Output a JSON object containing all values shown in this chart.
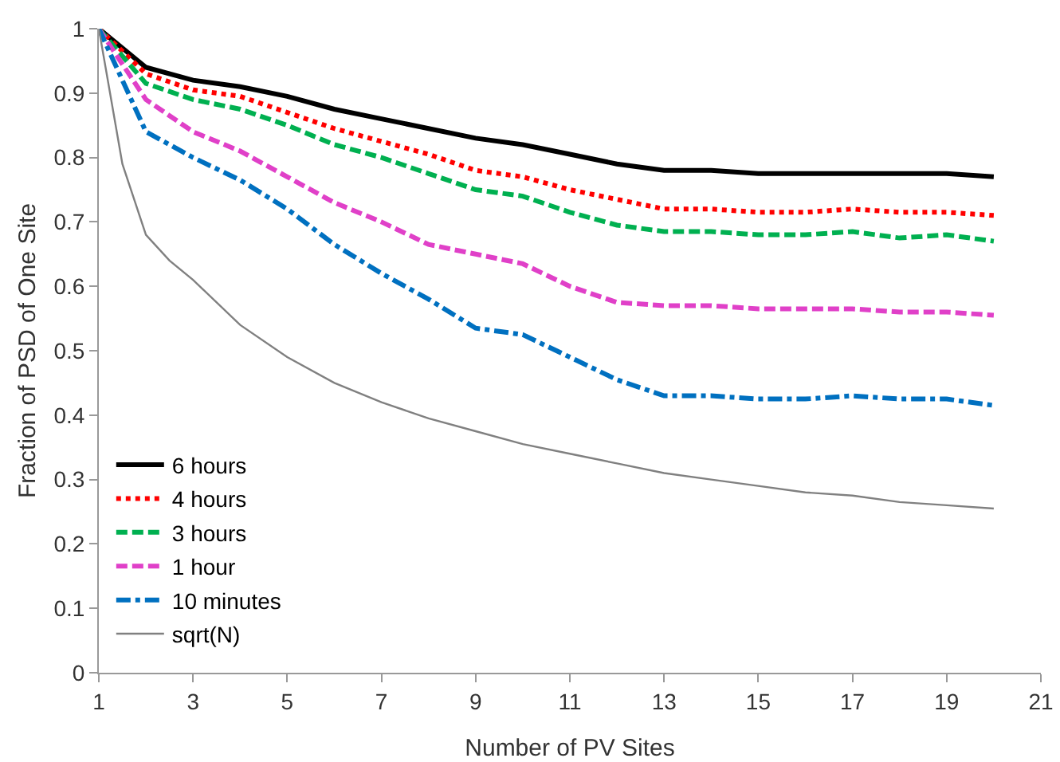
{
  "chart_data": {
    "type": "line",
    "xlabel": "Number of PV Sites",
    "ylabel": "Fraction of PSD of One Site",
    "x": [
      1,
      2,
      3,
      4,
      5,
      6,
      7,
      8,
      9,
      10,
      11,
      12,
      13,
      14,
      15,
      16,
      17,
      18,
      19,
      20
    ],
    "series": [
      {
        "name": "6 hours",
        "color": "#000000",
        "line_style": "solid",
        "values": [
          1,
          0.94,
          0.92,
          0.91,
          0.895,
          0.875,
          0.86,
          0.845,
          0.83,
          0.82,
          0.805,
          0.79,
          0.78,
          0.78,
          0.775,
          0.775,
          0.775,
          0.775,
          0.775,
          0.77
        ]
      },
      {
        "name": "4 hours",
        "color": "#ff0000",
        "line_style": "dotted",
        "values": [
          1,
          0.93,
          0.905,
          0.895,
          0.87,
          0.845,
          0.825,
          0.805,
          0.78,
          0.77,
          0.75,
          0.735,
          0.72,
          0.72,
          0.715,
          0.715,
          0.72,
          0.715,
          0.715,
          0.71
        ]
      },
      {
        "name": "3 hours",
        "color": "#00b050",
        "line_style": "dashed",
        "values": [
          1,
          0.915,
          0.89,
          0.875,
          0.85,
          0.82,
          0.8,
          0.775,
          0.75,
          0.74,
          0.715,
          0.695,
          0.685,
          0.685,
          0.68,
          0.68,
          0.685,
          0.675,
          0.68,
          0.67
        ]
      },
      {
        "name": "1 hour",
        "color": "#e040c8",
        "line_style": "dashed",
        "values": [
          1,
          0.89,
          0.84,
          0.81,
          0.77,
          0.73,
          0.7,
          0.665,
          0.65,
          0.635,
          0.6,
          0.575,
          0.57,
          0.57,
          0.565,
          0.565,
          0.565,
          0.56,
          0.56,
          0.555
        ]
      },
      {
        "name": "10 minutes",
        "color": "#0070c0",
        "line_style": "dashdot",
        "values": [
          1,
          0.84,
          0.8,
          0.765,
          0.72,
          0.665,
          0.62,
          0.58,
          0.535,
          0.525,
          0.49,
          0.455,
          0.43,
          0.43,
          0.425,
          0.425,
          0.43,
          0.425,
          0.425,
          0.415
        ]
      },
      {
        "name": "sqrt(N)",
        "color": "#808080",
        "line_style": "solid",
        "x": [
          1,
          1.5,
          2,
          2.5,
          3,
          4,
          5,
          6,
          7,
          8,
          9,
          10,
          11,
          12,
          13,
          14,
          15,
          16,
          17,
          18,
          19,
          20
        ],
        "values": [
          1,
          0.79,
          0.68,
          0.64,
          0.61,
          0.54,
          0.49,
          0.45,
          0.42,
          0.395,
          0.375,
          0.355,
          0.34,
          0.325,
          0.31,
          0.3,
          0.29,
          0.28,
          0.275,
          0.265,
          0.26,
          0.255
        ]
      }
    ],
    "xlim": [
      1,
      21
    ],
    "xticks": [
      1,
      3,
      5,
      7,
      9,
      11,
      13,
      15,
      17,
      19,
      21
    ],
    "ylim": [
      0,
      1
    ],
    "yticks": [
      0,
      0.1,
      0.2,
      0.3,
      0.4,
      0.5,
      0.6,
      0.7,
      0.8,
      0.9,
      1
    ],
    "grid": false,
    "legend": "bottom left",
    "marker": "none"
  }
}
